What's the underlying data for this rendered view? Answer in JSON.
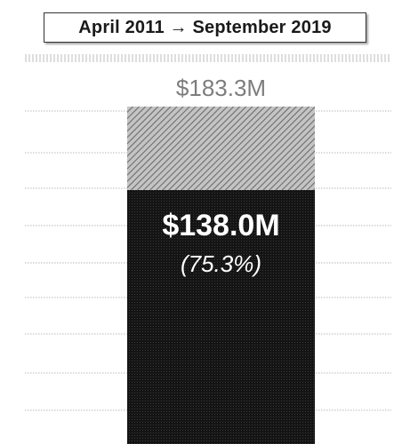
{
  "header": {
    "date_range": "April 2011 → September 2019"
  },
  "chart_data": {
    "type": "bar",
    "orientation": "vertical",
    "stacked": true,
    "grid": true,
    "categories": [
      ""
    ],
    "total": {
      "value": 183.3,
      "label": "$183.3M"
    },
    "series": [
      {
        "name": "",
        "values": [
          138.0
        ],
        "label": "$138.0M",
        "sublabel": "(75.3%)",
        "color": "#161616",
        "pattern": "solid"
      },
      {
        "name": "",
        "values": [
          45.3
        ],
        "label": "",
        "color": "#9a9a9a",
        "pattern": "hatched"
      }
    ],
    "ylim": [
      0,
      183.3
    ]
  }
}
